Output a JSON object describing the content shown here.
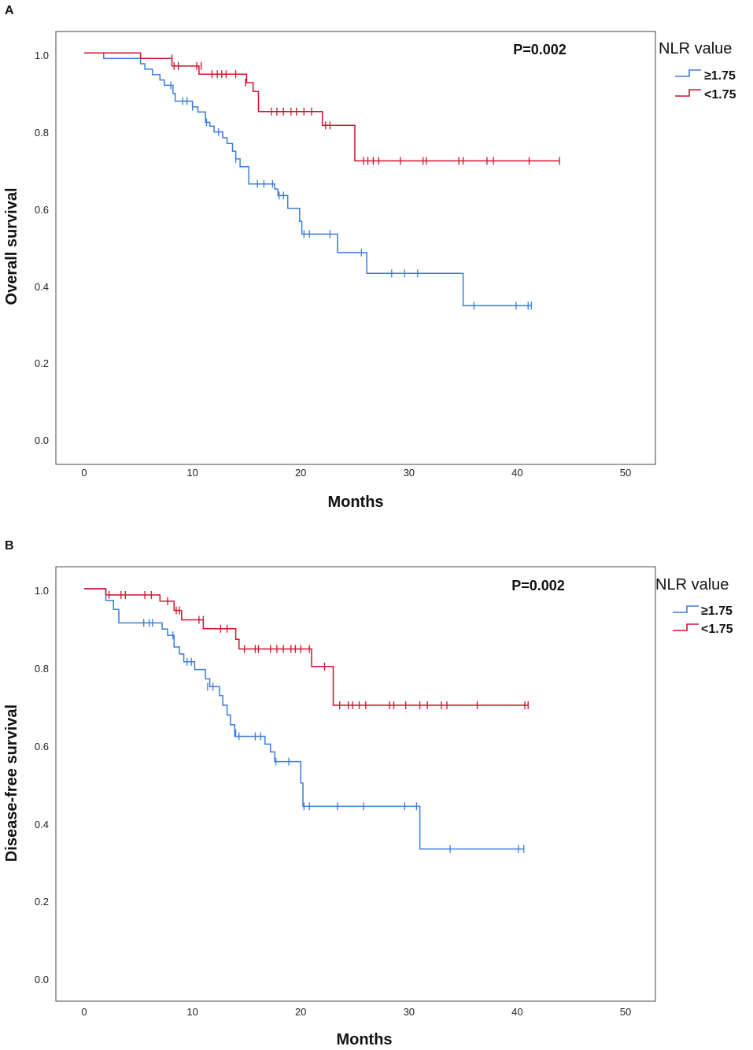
{
  "colors": {
    "high": "#3b7dd8",
    "low": "#d0122c",
    "axis": "#444444"
  },
  "chart_data": [
    {
      "type": "line",
      "panel": "A",
      "title": "",
      "xlabel": "Months",
      "ylabel": "Overall survival",
      "xlim": [
        0,
        50
      ],
      "ylim": [
        0,
        1
      ],
      "xticks": [
        "0",
        "10",
        "20",
        "30",
        "40",
        "50"
      ],
      "yticks": [
        "0.0",
        "0.2",
        "0.4",
        "0.6",
        "0.8",
        "1.0"
      ],
      "annotation": "P=0.002",
      "legend_title": "NLR value",
      "series": [
        {
          "name": "≥1.75",
          "color": "#3b7dd8",
          "steps": [
            [
              0,
              1.0
            ],
            [
              1.8,
              0.986
            ],
            [
              5.2,
              0.972
            ],
            [
              5.6,
              0.958
            ],
            [
              6.3,
              0.944
            ],
            [
              7.0,
              0.93
            ],
            [
              7.4,
              0.916
            ],
            [
              8.2,
              0.895
            ],
            [
              8.4,
              0.875
            ],
            [
              10.0,
              0.86
            ],
            [
              10.5,
              0.847
            ],
            [
              11.2,
              0.82
            ],
            [
              11.6,
              0.81
            ],
            [
              12.0,
              0.795
            ],
            [
              12.8,
              0.78
            ],
            [
              13.2,
              0.765
            ],
            [
              13.7,
              0.745
            ],
            [
              14.0,
              0.725
            ],
            [
              14.4,
              0.705
            ],
            [
              15.2,
              0.66
            ],
            [
              17.6,
              0.647
            ],
            [
              17.9,
              0.63
            ],
            [
              18.8,
              0.597
            ],
            [
              19.9,
              0.563
            ],
            [
              20.1,
              0.53
            ],
            [
              23.4,
              0.482
            ],
            [
              26.1,
              0.428
            ],
            [
              35.0,
              0.344
            ],
            [
              41.3,
              0.344
            ]
          ],
          "censored": [
            [
              8.0,
              0.916
            ],
            [
              9.1,
              0.875
            ],
            [
              9.5,
              0.875
            ],
            [
              10.0,
              0.86
            ],
            [
              11.3,
              0.82
            ],
            [
              12.4,
              0.795
            ],
            [
              14.0,
              0.725
            ],
            [
              16.0,
              0.66
            ],
            [
              16.6,
              0.66
            ],
            [
              17.4,
              0.66
            ],
            [
              18.0,
              0.63
            ],
            [
              18.4,
              0.63
            ],
            [
              20.3,
              0.53
            ],
            [
              20.8,
              0.53
            ],
            [
              22.7,
              0.53
            ],
            [
              25.6,
              0.482
            ],
            [
              28.4,
              0.428
            ],
            [
              29.6,
              0.428
            ],
            [
              30.8,
              0.428
            ],
            [
              36.0,
              0.344
            ],
            [
              39.9,
              0.344
            ],
            [
              41.0,
              0.344
            ],
            [
              41.3,
              0.344
            ]
          ]
        },
        {
          "name": "<1.75",
          "color": "#d0122c",
          "steps": [
            [
              0,
              1.0
            ],
            [
              5.2,
              0.986
            ],
            [
              8.1,
              0.966
            ],
            [
              10.6,
              0.945
            ],
            [
              15.0,
              0.923
            ],
            [
              15.6,
              0.9
            ],
            [
              16.1,
              0.848
            ],
            [
              22.0,
              0.812
            ],
            [
              25.0,
              0.72
            ],
            [
              43.9,
              0.72
            ]
          ],
          "censored": [
            [
              8.1,
              0.986
            ],
            [
              8.3,
              0.966
            ],
            [
              8.7,
              0.966
            ],
            [
              10.4,
              0.966
            ],
            [
              10.8,
              0.966
            ],
            [
              11.8,
              0.945
            ],
            [
              12.3,
              0.945
            ],
            [
              12.7,
              0.945
            ],
            [
              13.1,
              0.945
            ],
            [
              14.0,
              0.945
            ],
            [
              14.9,
              0.923
            ],
            [
              17.3,
              0.848
            ],
            [
              17.8,
              0.848
            ],
            [
              18.4,
              0.848
            ],
            [
              19.1,
              0.848
            ],
            [
              19.6,
              0.848
            ],
            [
              20.3,
              0.848
            ],
            [
              21.0,
              0.848
            ],
            [
              22.3,
              0.812
            ],
            [
              22.7,
              0.812
            ],
            [
              25.8,
              0.72
            ],
            [
              26.2,
              0.72
            ],
            [
              26.7,
              0.72
            ],
            [
              27.2,
              0.72
            ],
            [
              29.2,
              0.72
            ],
            [
              31.3,
              0.72
            ],
            [
              31.6,
              0.72
            ],
            [
              34.6,
              0.72
            ],
            [
              35.0,
              0.72
            ],
            [
              37.2,
              0.72
            ],
            [
              37.8,
              0.72
            ],
            [
              41.1,
              0.72
            ],
            [
              43.9,
              0.72
            ]
          ]
        }
      ]
    },
    {
      "type": "line",
      "panel": "B",
      "title": "",
      "xlabel": "Months",
      "ylabel": "Disease-free survival",
      "xlim": [
        0,
        50
      ],
      "ylim": [
        0,
        1
      ],
      "xticks": [
        "0",
        "10",
        "20",
        "30",
        "40",
        "50"
      ],
      "yticks": [
        "0.0",
        "0.2",
        "0.4",
        "0.6",
        "0.8",
        "1.0"
      ],
      "annotation": "P=0.002",
      "legend_title": "NLR value",
      "series": [
        {
          "name": "≥1.75",
          "color": "#3b7dd8",
          "steps": [
            [
              0,
              1.0
            ],
            [
              2.0,
              0.97
            ],
            [
              2.7,
              0.947
            ],
            [
              3.2,
              0.912
            ],
            [
              7.2,
              0.896
            ],
            [
              7.7,
              0.88
            ],
            [
              8.3,
              0.85
            ],
            [
              8.8,
              0.832
            ],
            [
              9.2,
              0.812
            ],
            [
              10.2,
              0.792
            ],
            [
              11.2,
              0.768
            ],
            [
              11.6,
              0.748
            ],
            [
              12.5,
              0.725
            ],
            [
              12.8,
              0.7
            ],
            [
              13.2,
              0.675
            ],
            [
              13.5,
              0.65
            ],
            [
              13.9,
              0.62
            ],
            [
              16.7,
              0.6
            ],
            [
              17.2,
              0.58
            ],
            [
              17.6,
              0.555
            ],
            [
              20.0,
              0.5
            ],
            [
              20.2,
              0.44
            ],
            [
              31.0,
              0.33
            ],
            [
              40.6,
              0.33
            ]
          ],
          "censored": [
            [
              3.2,
              0.93
            ],
            [
              5.5,
              0.912
            ],
            [
              6.0,
              0.912
            ],
            [
              6.3,
              0.912
            ],
            [
              8.2,
              0.88
            ],
            [
              9.5,
              0.812
            ],
            [
              9.9,
              0.812
            ],
            [
              11.4,
              0.748
            ],
            [
              11.9,
              0.748
            ],
            [
              14.0,
              0.628
            ],
            [
              14.3,
              0.62
            ],
            [
              15.8,
              0.62
            ],
            [
              16.3,
              0.62
            ],
            [
              17.7,
              0.555
            ],
            [
              18.9,
              0.555
            ],
            [
              20.3,
              0.44
            ],
            [
              20.8,
              0.44
            ],
            [
              23.4,
              0.44
            ],
            [
              25.8,
              0.44
            ],
            [
              29.6,
              0.44
            ],
            [
              30.7,
              0.44
            ],
            [
              33.8,
              0.33
            ],
            [
              40.1,
              0.33
            ],
            [
              40.6,
              0.33
            ]
          ]
        },
        {
          "name": "<1.75",
          "color": "#d0122c",
          "steps": [
            [
              0,
              1.0
            ],
            [
              2.0,
              0.984
            ],
            [
              7.0,
              0.968
            ],
            [
              8.3,
              0.944
            ],
            [
              9.0,
              0.92
            ],
            [
              11.0,
              0.897
            ],
            [
              14.0,
              0.87
            ],
            [
              14.3,
              0.845
            ],
            [
              21.0,
              0.8
            ],
            [
              23.0,
              0.7
            ],
            [
              41.0,
              0.7
            ]
          ],
          "censored": [
            [
              2.3,
              0.984
            ],
            [
              3.4,
              0.984
            ],
            [
              3.8,
              0.984
            ],
            [
              5.6,
              0.984
            ],
            [
              6.2,
              0.984
            ],
            [
              7.7,
              0.968
            ],
            [
              8.5,
              0.944
            ],
            [
              8.8,
              0.944
            ],
            [
              10.6,
              0.92
            ],
            [
              11.0,
              0.92
            ],
            [
              12.6,
              0.897
            ],
            [
              13.2,
              0.897
            ],
            [
              14.8,
              0.845
            ],
            [
              15.8,
              0.845
            ],
            [
              16.1,
              0.845
            ],
            [
              17.2,
              0.845
            ],
            [
              17.8,
              0.845
            ],
            [
              18.4,
              0.845
            ],
            [
              19.1,
              0.845
            ],
            [
              19.5,
              0.845
            ],
            [
              20.0,
              0.845
            ],
            [
              20.8,
              0.845
            ],
            [
              22.2,
              0.8
            ],
            [
              23.6,
              0.7
            ],
            [
              24.4,
              0.7
            ],
            [
              24.8,
              0.7
            ],
            [
              25.4,
              0.7
            ],
            [
              26.0,
              0.7
            ],
            [
              28.2,
              0.7
            ],
            [
              28.6,
              0.7
            ],
            [
              29.7,
              0.7
            ],
            [
              31.0,
              0.7
            ],
            [
              31.7,
              0.7
            ],
            [
              33.0,
              0.7
            ],
            [
              33.5,
              0.7
            ],
            [
              36.3,
              0.7
            ],
            [
              40.7,
              0.7
            ],
            [
              41.0,
              0.7
            ]
          ]
        }
      ]
    }
  ]
}
